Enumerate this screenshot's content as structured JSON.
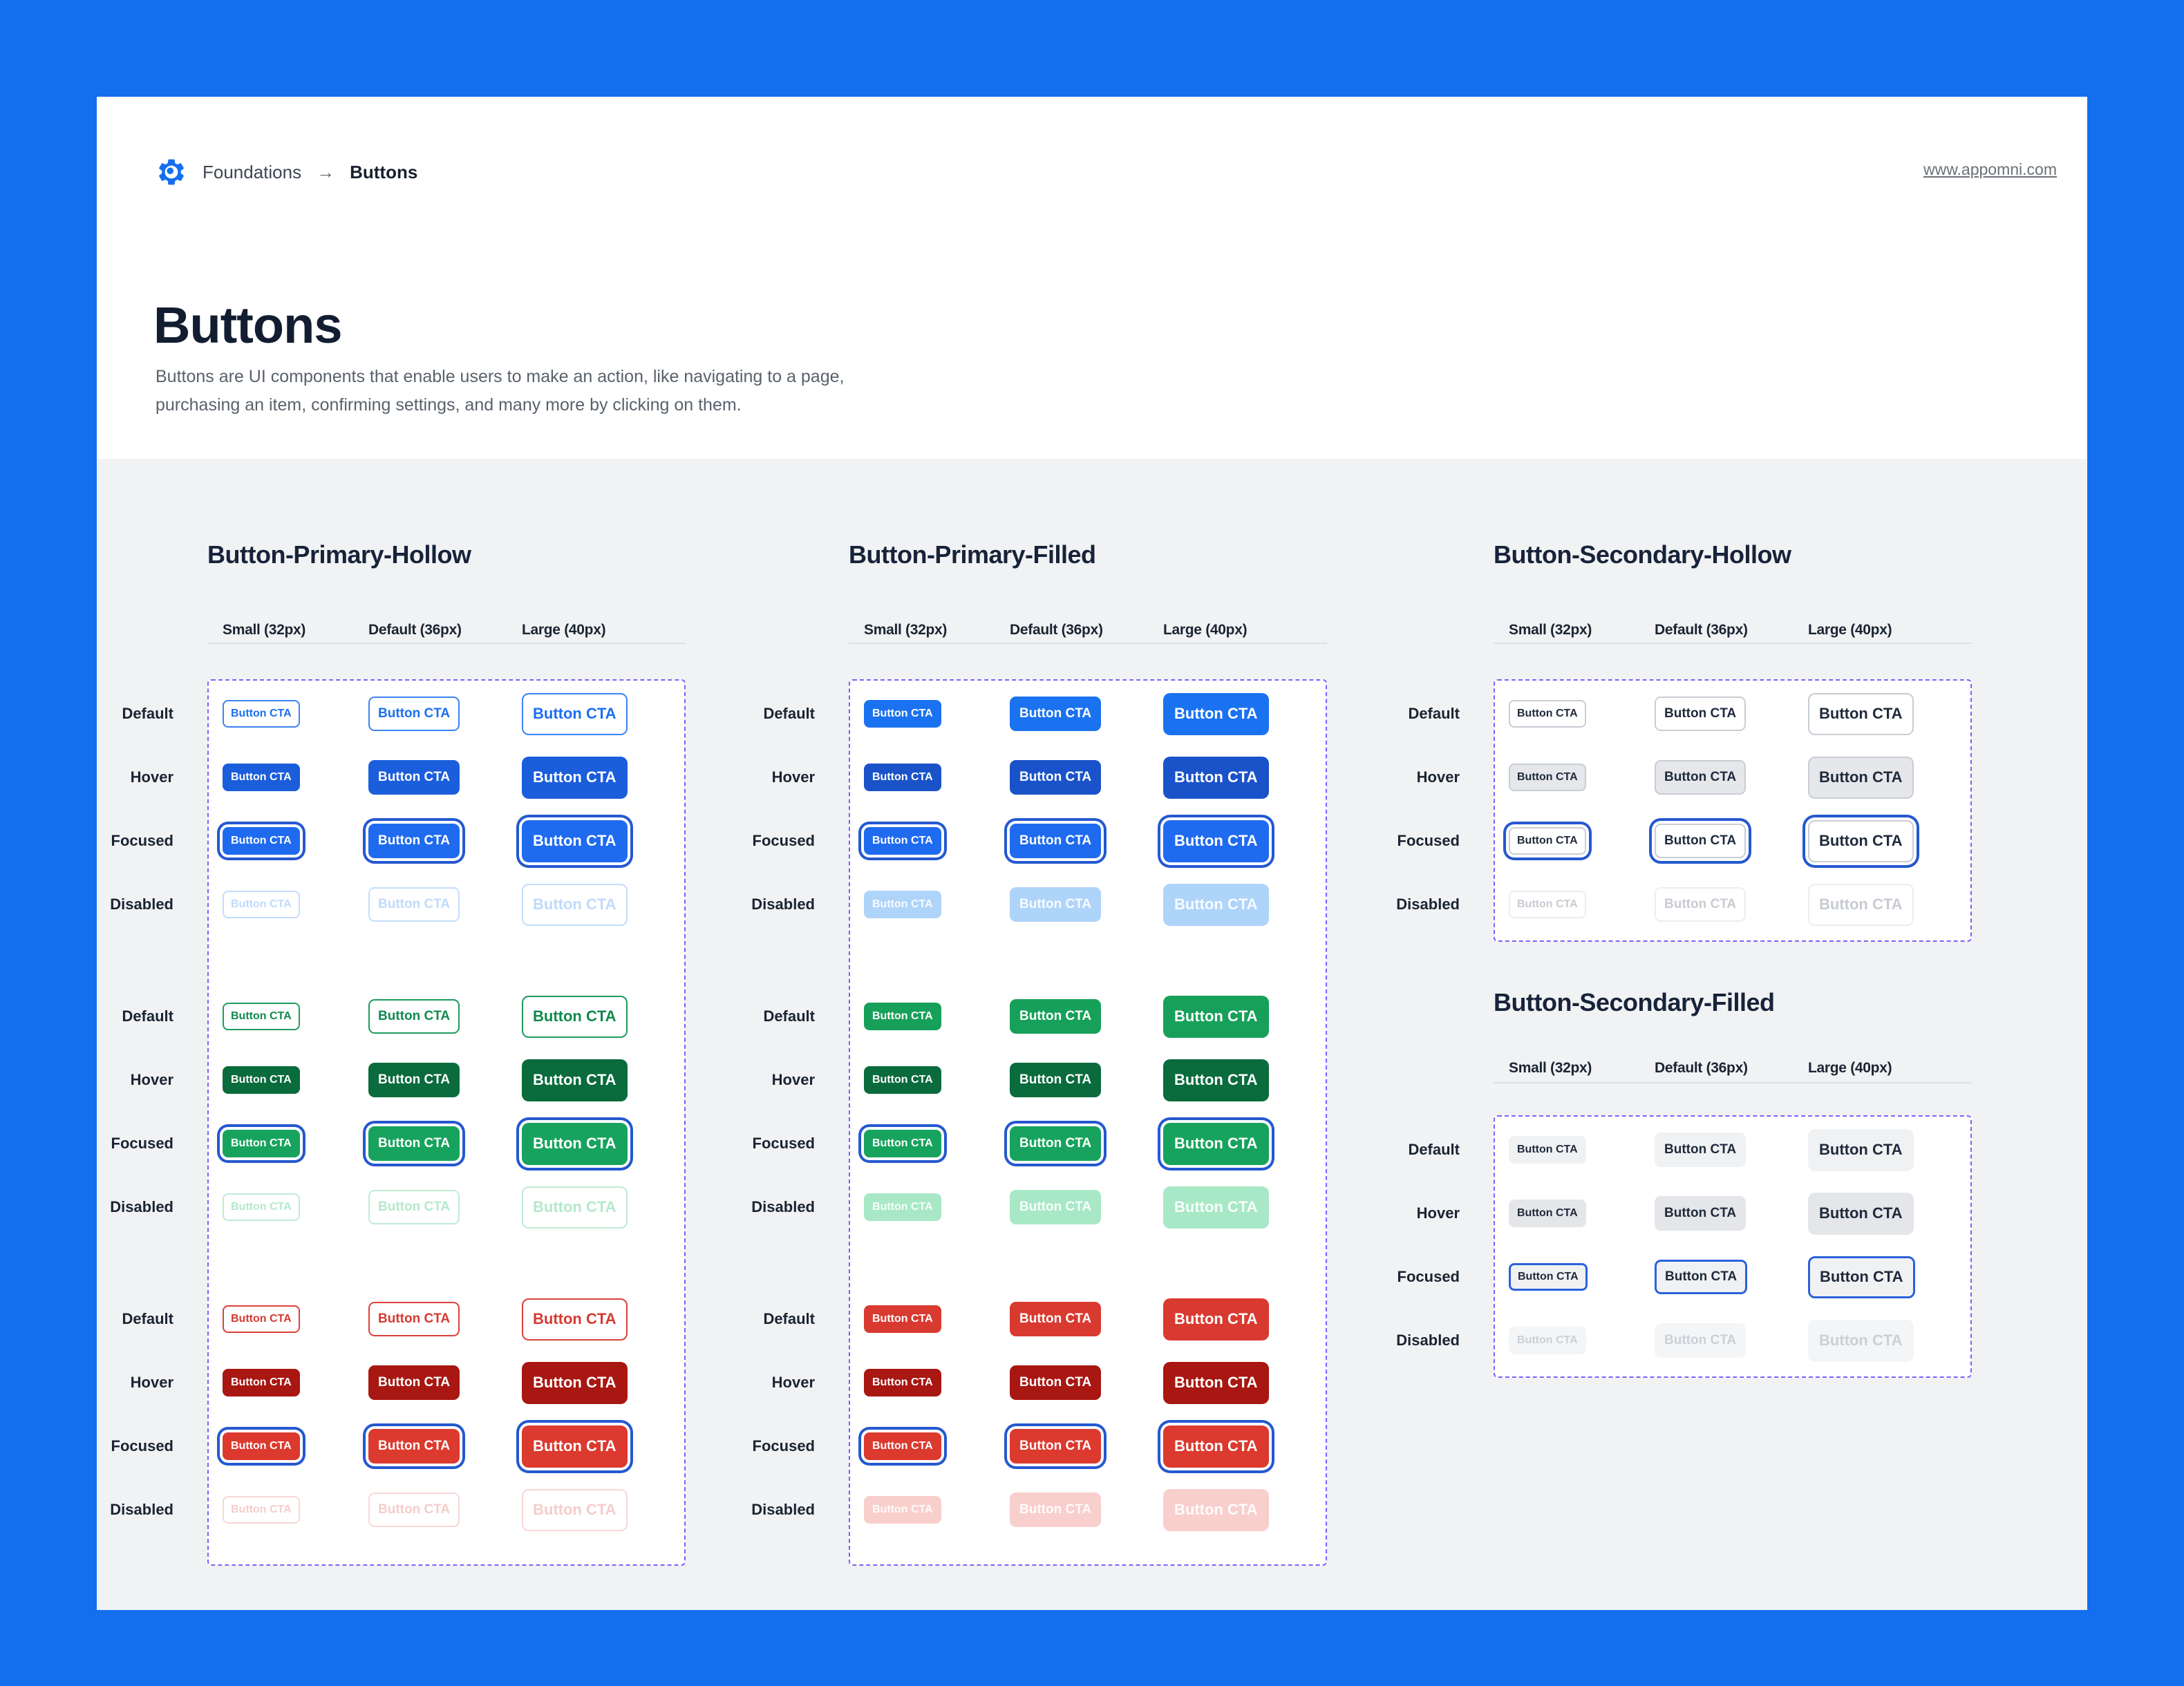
{
  "header": {
    "breadcrumb": {
      "app": "Foundations",
      "arrow": "→",
      "page": "Buttons"
    },
    "site_link": "www.appomni.com",
    "logo_icon": "gear-icon"
  },
  "intro": {
    "title": "Buttons",
    "description": "Buttons are UI components that enable users to make an action, like navigating to a page, purchasing an item, confirming settings, and many more by clicking on them."
  },
  "button_label": "Button CTA",
  "sizes": [
    {
      "id": "sm",
      "label": "Small (32px)"
    },
    {
      "id": "md",
      "label": "Default (36px)"
    },
    {
      "id": "lg",
      "label": "Large (40px)"
    }
  ],
  "states": [
    {
      "id": "default",
      "label": "Default"
    },
    {
      "id": "hover",
      "label": "Hover"
    },
    {
      "id": "focused",
      "label": "Focused"
    },
    {
      "id": "disabled",
      "label": "Disabled"
    }
  ],
  "tables": [
    {
      "title": "Button-Primary-Hollow",
      "groups": [
        "hollow-blue",
        "hollow-green",
        "hollow-red"
      ]
    },
    {
      "title": "Button-Primary-Filled",
      "groups": [
        "filled-blue",
        "filled-green",
        "filled-red"
      ]
    },
    {
      "title": "Button-Secondary-Hollow",
      "groups": [
        "secondary-hollow"
      ]
    },
    {
      "title": "Button-Secondary-Filled",
      "groups": [
        "secondary-filled"
      ]
    }
  ],
  "colors": {
    "canvas_frame": "#146FEF",
    "card": "#FFFFFF",
    "specimen_bg": "#F1F2F3",
    "heading_text": "#17233A",
    "body_text": "#59616C",
    "component_frame_dashed": "#7B61FF",
    "focus_ring": "#2558D0",
    "primary_blue": "#1B72F0",
    "primary_blue_hover": "#1A53C9",
    "primary_blue_disabled": "#AFD4FA",
    "green": "#17A05A",
    "green_hover": "#0A6B3C",
    "green_disabled": "#A8E8C6",
    "red": "#D93A30",
    "red_hover": "#A81712",
    "red_disabled": "#F8CFCC",
    "secondary_border": "#C8CCD3",
    "secondary_hover_bg": "#E5E7EA",
    "secondary_filled_bg": "#F0F1F3"
  }
}
